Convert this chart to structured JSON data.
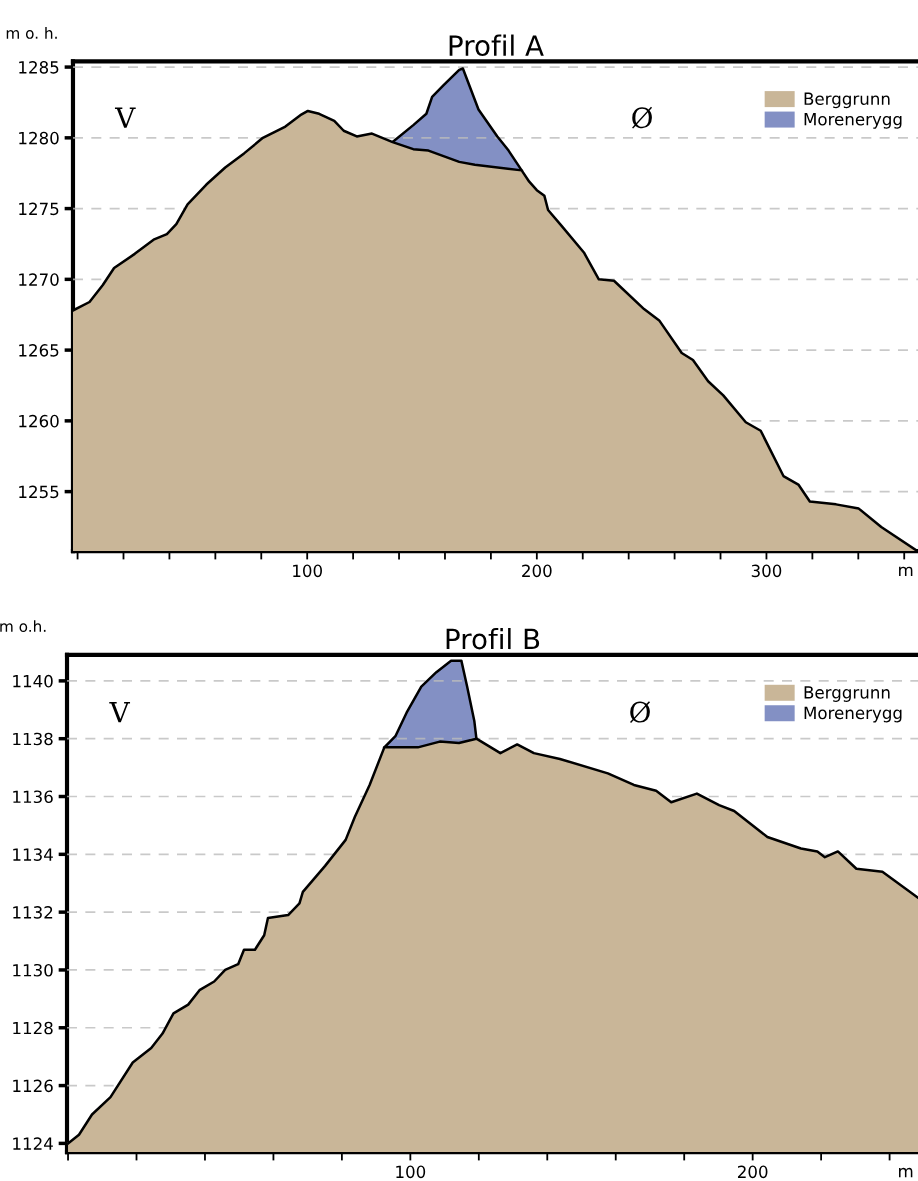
{
  "chart_data": [
    {
      "type": "area",
      "title": "Profil A",
      "ylabel": "m o. h.",
      "xlabel": "m",
      "annotations": [
        "V",
        "Ø"
      ],
      "xlim": [
        -2,
        366
      ],
      "ylim": [
        1250.8,
        1285.4
      ],
      "xticks": [
        {
          "value": 0,
          "label": null
        },
        {
          "value": 20,
          "label": null
        },
        {
          "value": 40,
          "label": null
        },
        {
          "value": 60,
          "label": null
        },
        {
          "value": 80,
          "label": null
        },
        100,
        {
          "value": 120,
          "label": null
        },
        {
          "value": 140,
          "label": null
        },
        {
          "value": 160,
          "label": null
        },
        {
          "value": 180,
          "label": null
        },
        200,
        {
          "value": 220,
          "label": null
        },
        {
          "value": 240,
          "label": null
        },
        {
          "value": 260,
          "label": null
        },
        {
          "value": 280,
          "label": null
        },
        300,
        {
          "value": 320,
          "label": null
        },
        {
          "value": 340,
          "label": null
        },
        {
          "value": 360,
          "label": null
        }
      ],
      "yticks": [
        1255,
        1260,
        1265,
        1270,
        1275,
        1280,
        1285
      ],
      "grid": "y",
      "legend": "top right",
      "series": [
        {
          "name": "Berggrunn",
          "color": "#c9b698",
          "x": [
            -2,
            5.2,
            11,
            15.9,
            24.9,
            33.1,
            38.9,
            43,
            47.9,
            56.1,
            64.3,
            72.5,
            80.7,
            90.5,
            97,
            100.3,
            105.2,
            111.8,
            115.9,
            121.6,
            128.2,
            137.2,
            146.2,
            152.8,
            166.2,
            173,
            193.4,
            196.7,
            200,
            203.3,
            204.9,
            210.7,
            220.5,
            227,
            233.6,
            246.7,
            253.3,
            263.1,
            268,
            274.6,
            281.2,
            291,
            297.5,
            307.4,
            313.9,
            318.9,
            330.3,
            340.2,
            350,
            364.8
          ],
          "values": [
            1267.8,
            1268.4,
            1269.6,
            1270.8,
            1271.8,
            1272.8,
            1273.2,
            1273.9,
            1275.3,
            1276.7,
            1277.9,
            1278.9,
            1280.0,
            1280.8,
            1281.6,
            1281.9,
            1281.7,
            1281.2,
            1280.5,
            1280.1,
            1280.3,
            1279.7,
            1279.2,
            1279.1,
            1278.3,
            1278.1,
            1277.7,
            1276.9,
            1276.3,
            1275.9,
            1274.9,
            1273.8,
            1271.9,
            1270.0,
            1269.9,
            1267.9,
            1267.1,
            1264.8,
            1264.3,
            1262.8,
            1261.8,
            1259.9,
            1259.3,
            1256.1,
            1255.5,
            1254.3,
            1254.1,
            1253.8,
            1252.5,
            1250.9
          ]
        },
        {
          "name": "Morenerygg",
          "color": "#8390c4",
          "x": [
            137.2,
            146.2,
            151.9,
            154.4,
            159.3,
            166.2,
            167.8,
            174.6,
            182.8,
            187.7,
            193.4
          ],
          "values": [
            1279.7,
            1280.9,
            1281.7,
            1282.9,
            1283.7,
            1284.8,
            1284.9,
            1282.0,
            1280.1,
            1279.1,
            1277.7
          ]
        }
      ]
    },
    {
      "type": "area",
      "title": "Profil B",
      "ylabel": "m o.h.",
      "xlabel": "m",
      "annotations": [
        "V",
        "Ø"
      ],
      "xlim": [
        -0.3,
        248.3
      ],
      "ylim": [
        1123.7,
        1140.9
      ],
      "xticks": [
        {
          "value": 0,
          "label": null
        },
        {
          "value": 20,
          "label": null
        },
        {
          "value": 40,
          "label": null
        },
        {
          "value": 60,
          "label": null
        },
        {
          "value": 80,
          "label": null
        },
        100,
        {
          "value": 120,
          "label": null
        },
        {
          "value": 140,
          "label": null
        },
        {
          "value": 160,
          "label": null
        },
        {
          "value": 180,
          "label": null
        },
        200,
        {
          "value": 220,
          "label": null
        },
        {
          "value": 240,
          "label": null
        }
      ],
      "yticks": [
        1124,
        1126,
        1128,
        1130,
        1132,
        1134,
        1136,
        1138,
        1140
      ],
      "grid": "y",
      "legend": "top right",
      "series": [
        {
          "name": "Berggrunn",
          "color": "#c9b698",
          "x": [
            0,
            3.2,
            7.0,
            12.4,
            18.9,
            24.3,
            27.6,
            30.8,
            35.1,
            38.4,
            42.7,
            45.9,
            49.7,
            51.4,
            54.6,
            57.3,
            58.4,
            64.3,
            67.6,
            68.6,
            75.1,
            81.1,
            83.8,
            88.1,
            92.4,
            102.2,
            108.6,
            114.2,
            119.3,
            126.3,
            131.2,
            136.1,
            143.7,
            157.7,
            165.3,
            171.8,
            176.2,
            183.7,
            190.2,
            194.6,
            204.3,
            214.1,
            218.9,
            221.1,
            224.9,
            230.3,
            237.9,
            248.3
          ],
          "values": [
            1124.0,
            1124.3,
            1125.0,
            1125.6,
            1126.8,
            1127.3,
            1127.8,
            1128.5,
            1128.8,
            1129.3,
            1129.6,
            1130.0,
            1130.2,
            1130.7,
            1130.7,
            1131.2,
            1131.8,
            1131.9,
            1132.3,
            1132.7,
            1133.6,
            1134.5,
            1135.3,
            1136.4,
            1137.7,
            1137.7,
            1137.9,
            1137.85,
            1138.0,
            1137.5,
            1137.8,
            1137.5,
            1137.3,
            1136.8,
            1136.4,
            1136.2,
            1135.8,
            1136.1,
            1135.7,
            1135.5,
            1134.6,
            1134.2,
            1134.1,
            1133.9,
            1134.1,
            1133.5,
            1133.4,
            1132.5
          ]
        },
        {
          "name": "Morenerygg",
          "color": "#8390c4",
          "x": [
            92.4,
            95.7,
            98.9,
            103.2,
            107.6,
            111.9,
            114.9,
            116.6,
            118.7,
            119.3
          ],
          "values": [
            1137.7,
            1138.1,
            1138.9,
            1139.8,
            1140.3,
            1140.7,
            1140.7,
            1139.8,
            1138.6,
            1138.0
          ]
        }
      ]
    }
  ]
}
